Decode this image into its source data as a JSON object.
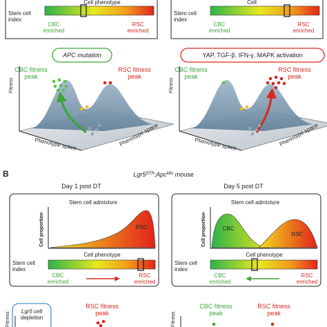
{
  "panel_a": {
    "left": {
      "bar_title": "Cell phenotype",
      "index_label": [
        "Stem cell",
        "index"
      ],
      "cbc": [
        "CBC",
        "enriched"
      ],
      "rsc": [
        "RSC",
        "enriched"
      ],
      "event": "APC mutation",
      "cbc_peak": [
        "CBC fitness",
        "peak"
      ],
      "rsc_peak": [
        "RSC fitness",
        "peak"
      ],
      "y_axis": "Fitness",
      "x_axis_1": "Phenotype space",
      "x_axis_2": "Phenotype space"
    },
    "right": {
      "bar_title": "Cell",
      "index_label": [
        "Stem cell",
        "index"
      ],
      "cbc": [
        "CBC",
        "enriched"
      ],
      "rsc": [
        "RSC",
        "enriched"
      ],
      "event": "YAP, TGF-β, IFN-γ, MAPK activation",
      "cbc_peak": [
        "CBC fitness",
        "peak"
      ],
      "rsc_peak": [
        "RSC fitness",
        "peak"
      ],
      "y_axis": "Fitness",
      "x_axis_1": "Phenotype space",
      "x_axis_2": "Phenotype space"
    }
  },
  "panel_b": {
    "label": "B",
    "title": [
      "Lgr5",
      "DTR",
      ";",
      "Apc",
      "Min",
      " mouse"
    ],
    "left": {
      "day": "Day 1 post DT",
      "admixture": "Stem cell admixture",
      "y_axis": "Cell proportion",
      "peaks": [
        "RSC"
      ],
      "x_axis": "Cell phenotype",
      "index_label": [
        "Stem cell",
        "index"
      ],
      "cbc": [
        "CBC",
        "enriched"
      ],
      "rsc": [
        "RSC",
        "enriched"
      ]
    },
    "right": {
      "day": "Day 5 post DT",
      "admixture": "Stem cell admixture",
      "y_axis": "Cell proportion",
      "peaks": [
        "CBC",
        "RSC"
      ],
      "x_axis": "Cell phenotype",
      "index_label": [
        "Stem cell",
        "index"
      ],
      "cbc": [
        "CBC",
        "enriched"
      ],
      "rsc": [
        "RSC",
        "enriched"
      ]
    }
  },
  "panel_c": {
    "left": {
      "event": [
        "Lgr5 cell",
        "depletion"
      ],
      "rsc_peak": [
        "RSC fitness",
        "peak"
      ],
      "y_axis": "Fitness"
    },
    "right": {
      "cbc_peak": [
        "CBC fitness",
        "peak"
      ],
      "rsc_peak": [
        "RSC fitness",
        "peak"
      ],
      "y_axis": "Fitness"
    }
  }
}
